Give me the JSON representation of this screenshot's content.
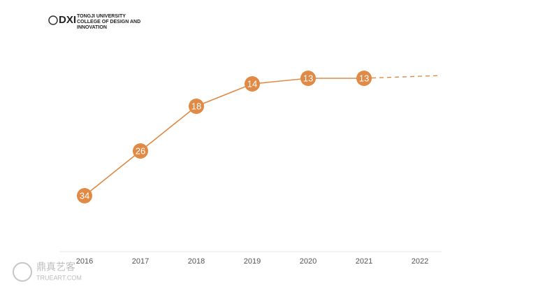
{
  "logo": {
    "mark": "DXI",
    "lines": [
      "TONGJI UNIVERSITY",
      "COLLEGE OF DESIGN AND",
      "INNOVATION"
    ]
  },
  "watermark": {
    "cn": "鼎真艺客",
    "en": "TRUEART.COM"
  },
  "chart_data": {
    "type": "line",
    "categories": [
      "2016",
      "2017",
      "2018",
      "2019",
      "2020",
      "2021",
      "2022"
    ],
    "series": [
      {
        "color": "#e08a45",
        "values": [
          34,
          26,
          18,
          14,
          13,
          13,
          null
        ]
      }
    ],
    "ylim": [
      36,
      11
    ]
  }
}
